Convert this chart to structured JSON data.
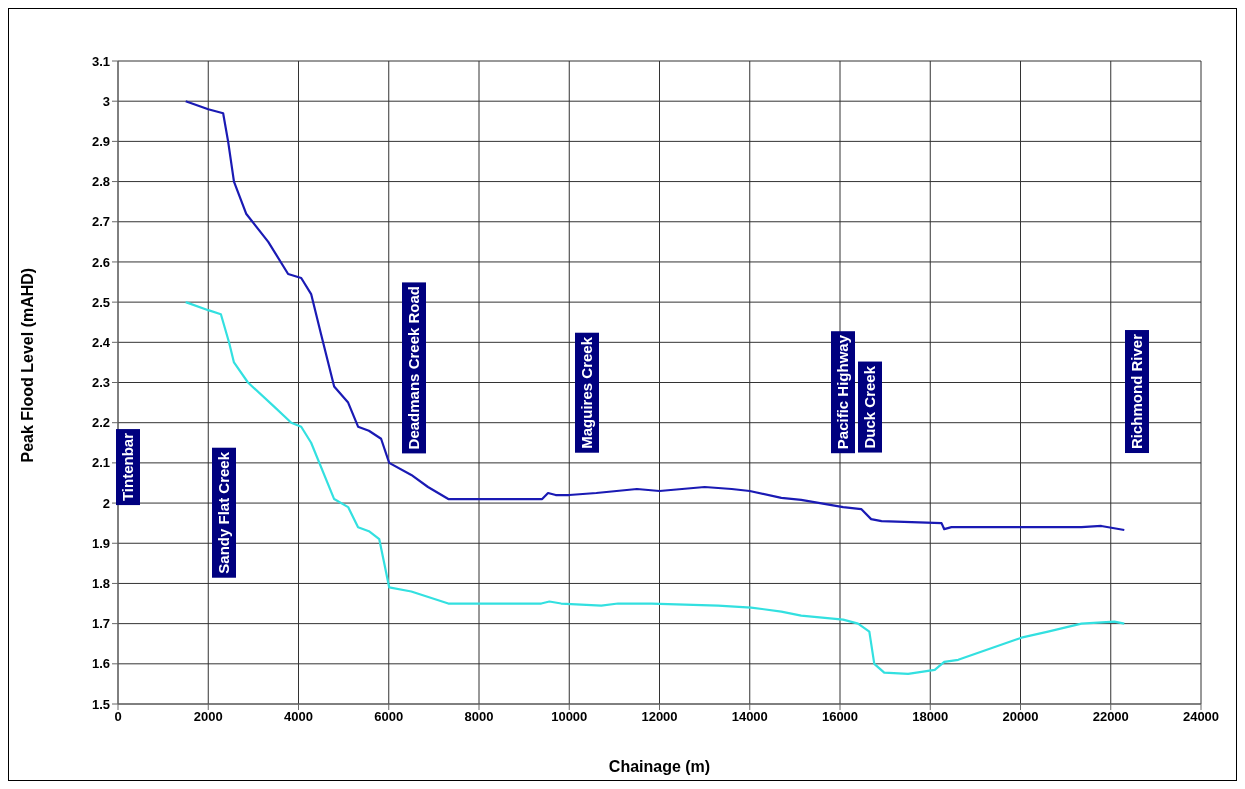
{
  "chart_data": {
    "type": "line",
    "xlabel": "Chainage (m)",
    "ylabel": "Peak Flood Level (mAHD)",
    "xlim": [
      0,
      24000
    ],
    "xticks": [
      0,
      2000,
      4000,
      6000,
      8000,
      10000,
      12000,
      14000,
      16000,
      18000,
      20000,
      22000,
      24000
    ],
    "ylim": [
      1.5,
      3.1
    ],
    "yticks": [
      1.5,
      1.6,
      1.7,
      1.8,
      1.9,
      2,
      2.1,
      2.2,
      2.3,
      2.4,
      2.5,
      2.6,
      2.7,
      2.8,
      2.9,
      3,
      3.1
    ],
    "grid": true,
    "legend": false,
    "marker": "none",
    "line_style": "solid",
    "series": [
      {
        "color": "#1a1ab4",
        "x": [
          1500,
          2000,
          2330,
          2440,
          2570,
          2840,
          3330,
          3770,
          4060,
          4280,
          4500,
          4790,
          5100,
          5320,
          5560,
          5830,
          6010,
          6500,
          6870,
          7320,
          9400,
          9530,
          9700,
          10000,
          10600,
          11500,
          12000,
          13000,
          13600,
          14000,
          14700,
          15140,
          16070,
          16470,
          16690,
          16920,
          18250,
          18310,
          18470,
          21350,
          21790,
          22300
        ],
        "values": [
          3.0,
          2.98,
          2.97,
          2.9,
          2.8,
          2.72,
          2.65,
          2.57,
          2.56,
          2.52,
          2.42,
          2.29,
          2.25,
          2.19,
          2.18,
          2.16,
          2.1,
          2.07,
          2.04,
          2.01,
          2.01,
          2.025,
          2.02,
          2.02,
          2.025,
          2.035,
          2.03,
          2.04,
          2.035,
          2.03,
          2.013,
          2.008,
          1.99,
          1.985,
          1.96,
          1.955,
          1.95,
          1.935,
          1.94,
          1.94,
          1.943,
          1.933
        ]
      },
      {
        "color": "#33e0e0",
        "x": [
          1500,
          2000,
          2280,
          2460,
          2570,
          2880,
          3460,
          3840,
          4060,
          4280,
          4790,
          5100,
          5320,
          5560,
          5790,
          5900,
          6010,
          6500,
          7320,
          9380,
          9560,
          9820,
          10710,
          11080,
          11820,
          13300,
          14030,
          14700,
          15140,
          16070,
          16400,
          16650,
          16760,
          16980,
          17510,
          18100,
          18310,
          18620,
          20020,
          20610,
          21350,
          22080,
          22300
        ],
        "values": [
          2.5,
          2.48,
          2.47,
          2.4,
          2.35,
          2.3,
          2.24,
          2.2,
          2.19,
          2.15,
          2.01,
          1.99,
          1.94,
          1.93,
          1.91,
          1.85,
          1.79,
          1.78,
          1.75,
          1.75,
          1.755,
          1.75,
          1.745,
          1.75,
          1.75,
          1.745,
          1.74,
          1.73,
          1.72,
          1.71,
          1.7,
          1.68,
          1.6,
          1.578,
          1.575,
          1.585,
          1.605,
          1.61,
          1.665,
          1.68,
          1.7,
          1.705,
          1.7
        ]
      }
    ],
    "annotations": [
      "Tintenbar",
      "Sandy Flat Creek",
      "Deadmans Creek Road",
      "Maguires Creek",
      "Pacific Highway",
      "Duck Creek",
      "Richmond River"
    ]
  }
}
